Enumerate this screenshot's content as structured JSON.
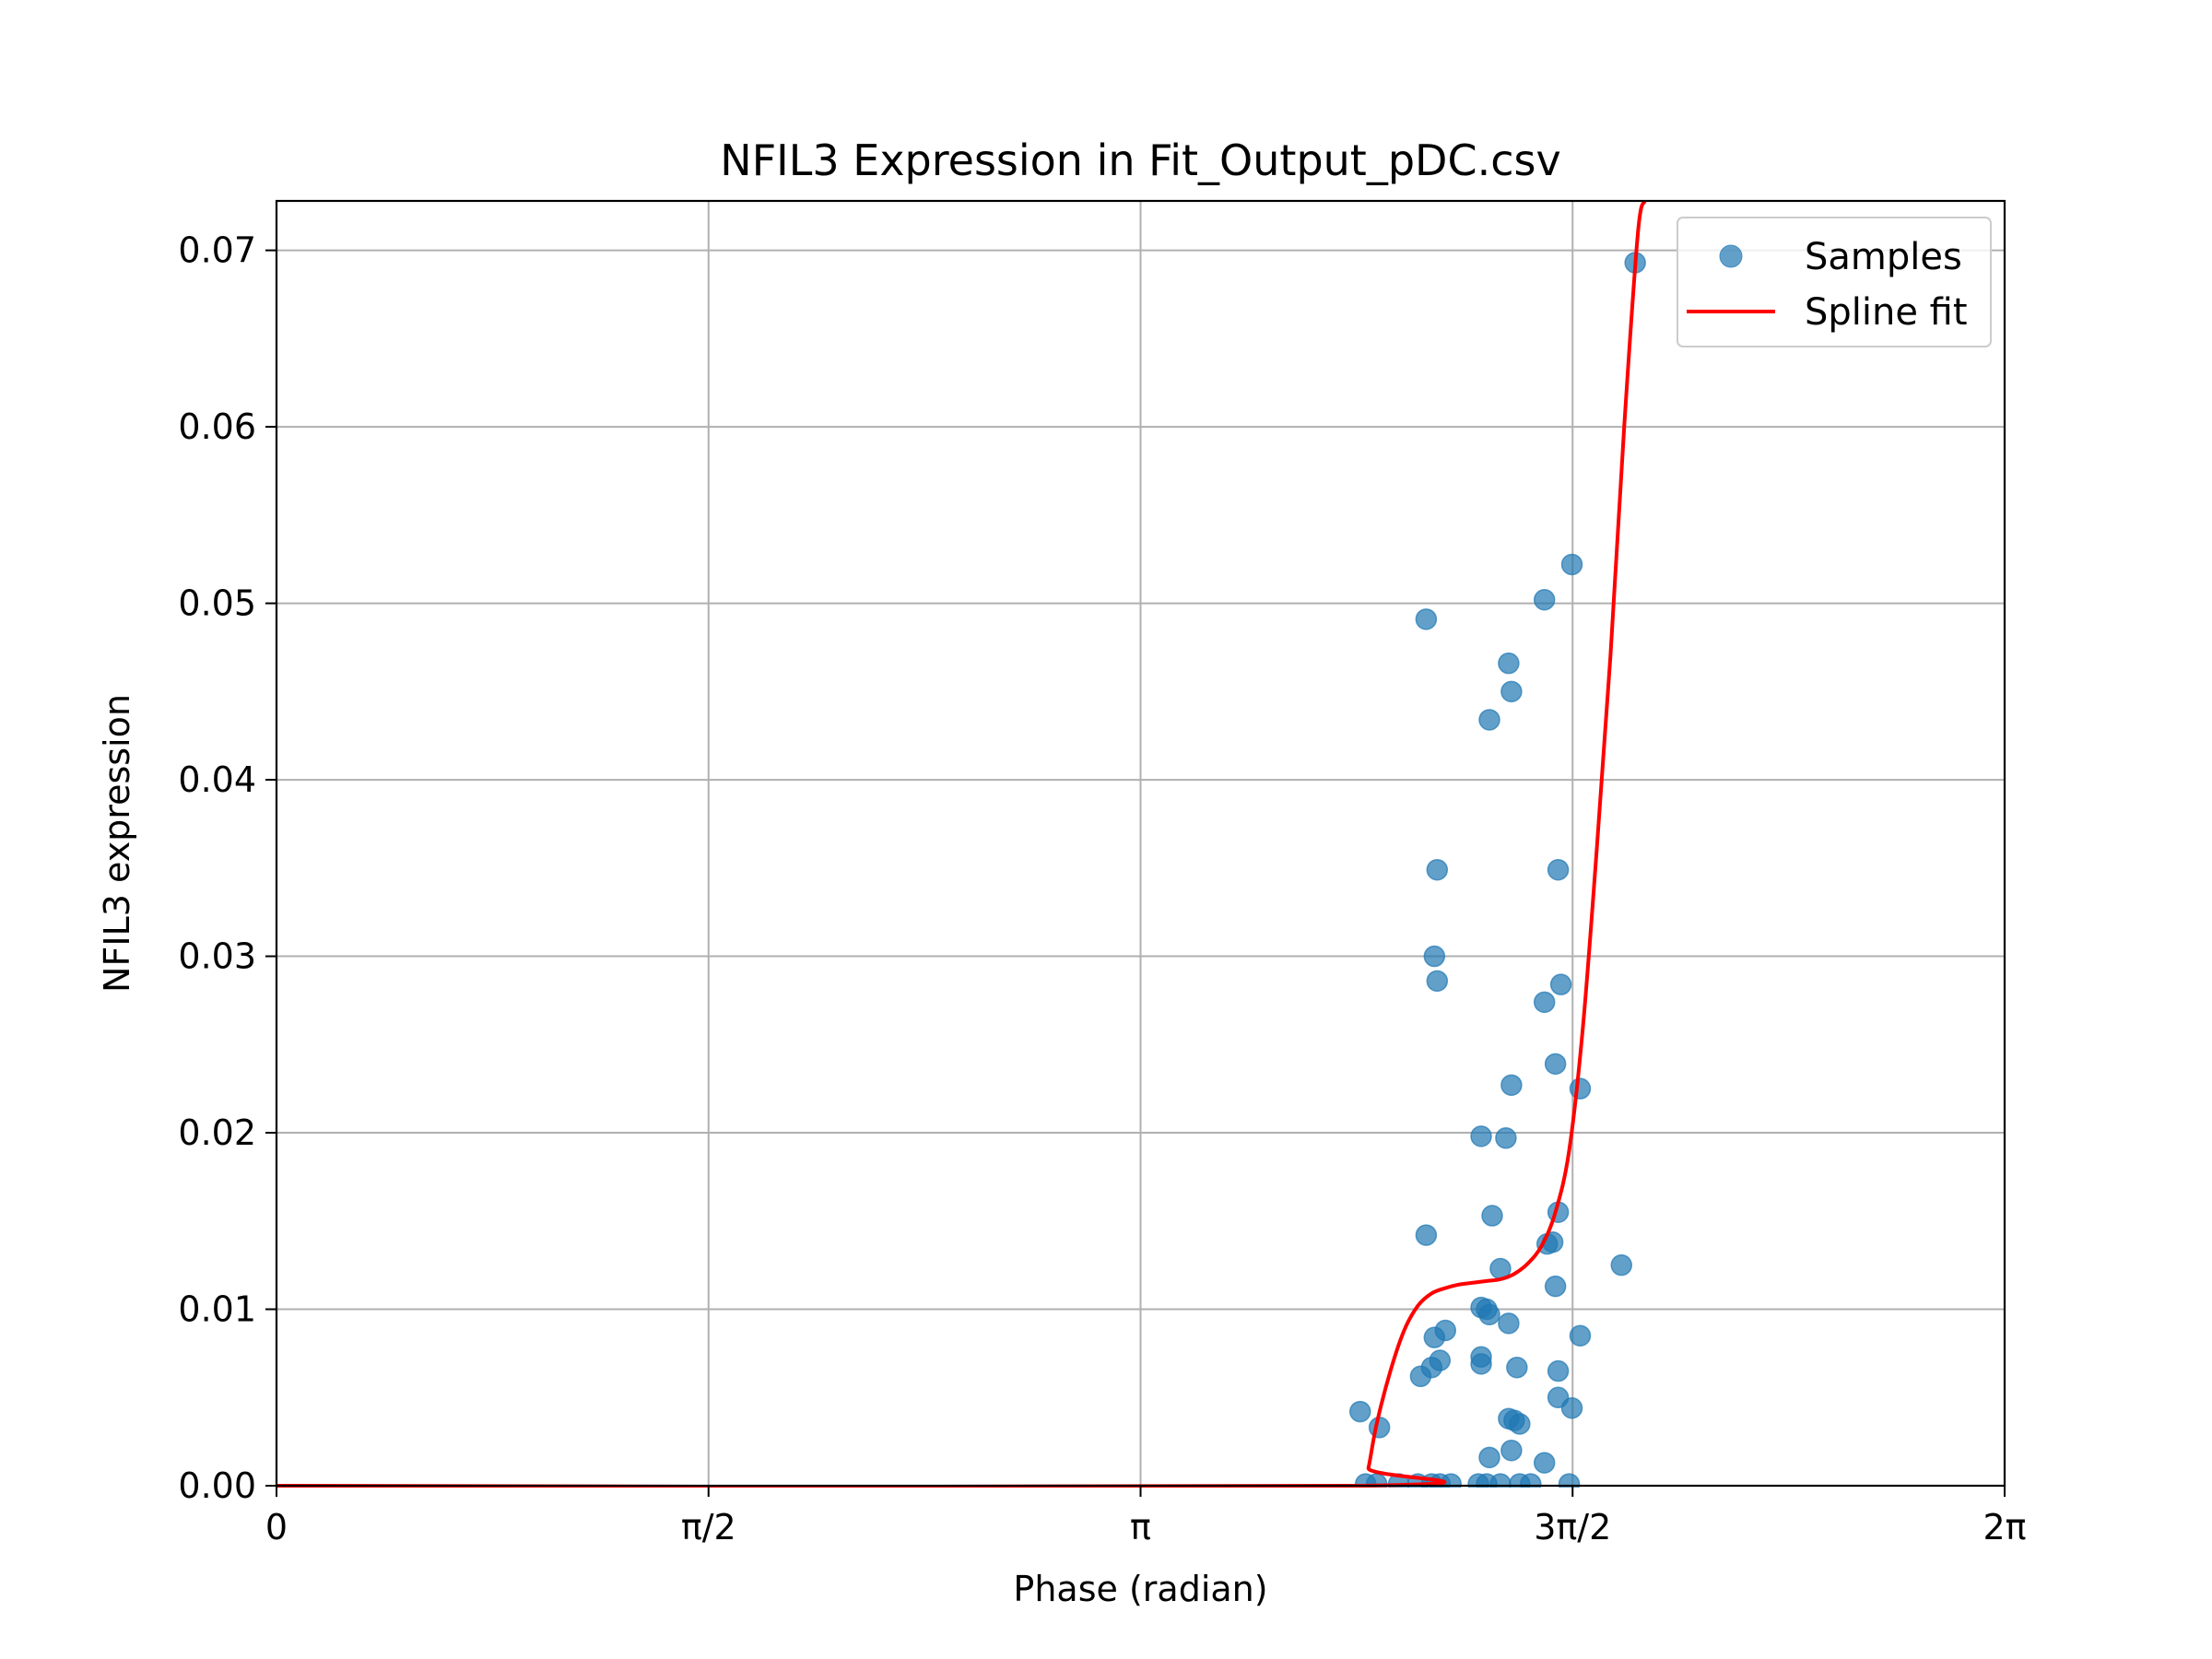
{
  "chart_data": {
    "type": "scatter",
    "title": "NFIL3 Expression in Fit_Output_pDC.csv",
    "xlabel": "Phase (radian)",
    "ylabel": "NFIL3 expression",
    "xlim": [
      0,
      6.2832
    ],
    "ylim": [
      0,
      0.0728
    ],
    "grid": true,
    "legend_position": "top-right",
    "x_ticks": [
      {
        "value": 0,
        "label": "0"
      },
      {
        "value": 1.5708,
        "label": "π/2"
      },
      {
        "value": 3.1416,
        "label": "π"
      },
      {
        "value": 4.7124,
        "label": "3π/2"
      },
      {
        "value": 6.2832,
        "label": "2π"
      }
    ],
    "y_ticks": [
      {
        "value": 0.0,
        "label": "0.00"
      },
      {
        "value": 0.01,
        "label": "0.01"
      },
      {
        "value": 0.02,
        "label": "0.02"
      },
      {
        "value": 0.03,
        "label": "0.03"
      },
      {
        "value": 0.04,
        "label": "0.04"
      },
      {
        "value": 0.05,
        "label": "0.05"
      },
      {
        "value": 0.06,
        "label": "0.06"
      },
      {
        "value": 0.07,
        "label": "0.07"
      }
    ],
    "series": [
      {
        "name": "Samples",
        "kind": "scatter",
        "color": "#1f77b4",
        "points": [
          [
            4.94,
            0.0693
          ],
          [
            4.71,
            0.0522
          ],
          [
            4.61,
            0.0502
          ],
          [
            4.18,
            0.0491
          ],
          [
            4.48,
            0.0466
          ],
          [
            4.49,
            0.045
          ],
          [
            4.41,
            0.0434
          ],
          [
            4.22,
            0.0349
          ],
          [
            4.66,
            0.0349
          ],
          [
            4.21,
            0.03
          ],
          [
            4.22,
            0.0286
          ],
          [
            4.67,
            0.0284
          ],
          [
            4.61,
            0.0274
          ],
          [
            4.65,
            0.0239
          ],
          [
            4.49,
            0.0227
          ],
          [
            4.74,
            0.0225
          ],
          [
            4.38,
            0.0198
          ],
          [
            4.47,
            0.0197
          ],
          [
            4.66,
            0.0155
          ],
          [
            4.42,
            0.0153
          ],
          [
            4.18,
            0.0142
          ],
          [
            4.64,
            0.0138
          ],
          [
            4.62,
            0.0137
          ],
          [
            4.89,
            0.0125
          ],
          [
            4.45,
            0.0123
          ],
          [
            4.65,
            0.0113
          ],
          [
            4.38,
            0.0101
          ],
          [
            4.4,
            0.01
          ],
          [
            4.41,
            0.0097
          ],
          [
            4.48,
            0.0092
          ],
          [
            4.25,
            0.0088
          ],
          [
            4.74,
            0.0085
          ],
          [
            4.21,
            0.0084
          ],
          [
            4.38,
            0.0073
          ],
          [
            4.23,
            0.0071
          ],
          [
            4.38,
            0.0069
          ],
          [
            4.2,
            0.0067
          ],
          [
            4.51,
            0.0067
          ],
          [
            4.66,
            0.0065
          ],
          [
            4.16,
            0.0062
          ],
          [
            4.66,
            0.005
          ],
          [
            4.71,
            0.0044
          ],
          [
            3.94,
            0.0042
          ],
          [
            4.48,
            0.0038
          ],
          [
            4.5,
            0.0037
          ],
          [
            4.52,
            0.0035
          ],
          [
            4.01,
            0.0033
          ],
          [
            4.49,
            0.002
          ],
          [
            4.41,
            0.0016
          ],
          [
            4.61,
            0.0013
          ],
          [
            3.96,
            0.0001
          ],
          [
            4.0,
            0.0001
          ],
          [
            4.08,
            0.0001
          ],
          [
            4.15,
            0.0001
          ],
          [
            4.2,
            0.0001
          ],
          [
            4.23,
            0.0001
          ],
          [
            4.27,
            0.0001
          ],
          [
            4.37,
            0.0001
          ],
          [
            4.4,
            0.0001
          ],
          [
            4.45,
            0.0001
          ],
          [
            4.52,
            0.0001
          ],
          [
            4.56,
            0.0001
          ],
          [
            4.7,
            0.0001
          ]
        ]
      },
      {
        "name": "Spline fit",
        "kind": "line",
        "color": "#ff0000",
        "points": [
          [
            0,
            0
          ],
          [
            3.95,
            0
          ],
          [
            3.97,
            0.001
          ],
          [
            4.0,
            0.0035
          ],
          [
            4.05,
            0.0065
          ],
          [
            4.1,
            0.0088
          ],
          [
            4.15,
            0.0102
          ],
          [
            4.2,
            0.0109
          ],
          [
            4.25,
            0.0112
          ],
          [
            4.3,
            0.0114
          ],
          [
            4.35,
            0.0115
          ],
          [
            4.4,
            0.0116
          ],
          [
            4.45,
            0.0117
          ],
          [
            4.5,
            0.012
          ],
          [
            4.55,
            0.0126
          ],
          [
            4.6,
            0.0136
          ],
          [
            4.65,
            0.0155
          ],
          [
            4.7,
            0.019
          ],
          [
            4.75,
            0.026
          ],
          [
            4.8,
            0.036
          ],
          [
            4.85,
            0.047
          ],
          [
            4.9,
            0.06
          ],
          [
            4.95,
            0.071
          ],
          [
            4.975,
            0.0728
          ]
        ]
      }
    ]
  }
}
